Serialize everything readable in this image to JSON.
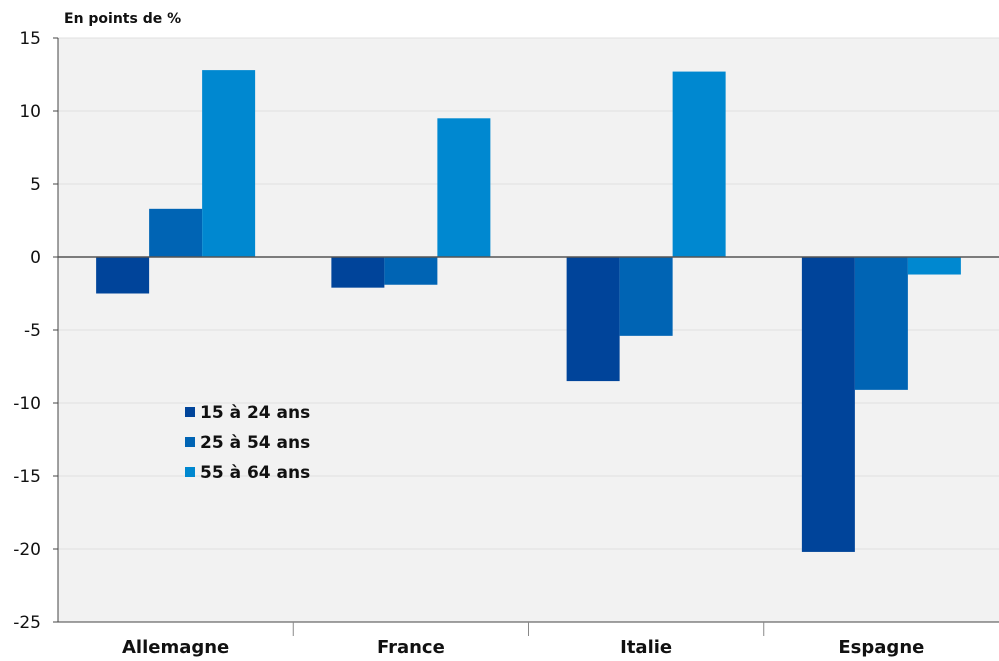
{
  "chart_data": {
    "type": "bar",
    "unit_label": "En points de %",
    "categories": [
      "Allemagne",
      "France",
      "Italie",
      "Espagne"
    ],
    "series": [
      {
        "name": "15 à 24 ans",
        "color": "#00449a",
        "values": [
          -2.5,
          -2.1,
          -8.5,
          -20.2
        ]
      },
      {
        "name": "25 à 54 ans",
        "color": "#0064b4",
        "values": [
          3.3,
          -1.9,
          -5.4,
          -9.1
        ]
      },
      {
        "name": "55 à 64 ans",
        "color": "#0088d0",
        "values": [
          12.8,
          9.5,
          12.7,
          -1.2
        ]
      }
    ],
    "ylim": [
      -25,
      15
    ],
    "yticks": [
      15,
      10,
      5,
      0,
      -5,
      -10,
      -15,
      -20,
      -25
    ],
    "grid": true,
    "legend": "inside-left",
    "plot_background": "#f2f2f2",
    "gridline_color": "#e0e0e0",
    "zero_line_color": "#555555"
  }
}
